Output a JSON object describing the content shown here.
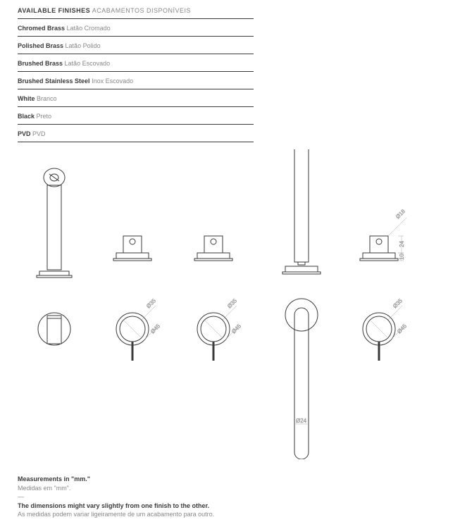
{
  "header": {
    "title_en": "AVAILABLE FINISHES",
    "title_pt": "ACABAMENTOS DISPONÍVEIS"
  },
  "finishes": [
    {
      "en": "Chromed Brass",
      "pt": "Latão Cromado"
    },
    {
      "en": "Polished Brass",
      "pt": "Latão Polido"
    },
    {
      "en": "Brushed Brass",
      "pt": "Latão Escovado"
    },
    {
      "en": "Brushed Stainless Steel",
      "pt": "Inox Escovado"
    },
    {
      "en": "White",
      "pt": "Branco"
    },
    {
      "en": "Black",
      "pt": "Preto"
    },
    {
      "en": "PVD",
      "pt": "PVD"
    }
  ],
  "footer": {
    "meas_en": "Measurements in \"mm.\"",
    "meas_pt": "Medidas em \"mm\".",
    "dash": "—",
    "dim_en": "The dimensions might vary slightly from one finish to the other.",
    "dim_pt": "As medidas podem variar ligeiramente de um acabamento para outro."
  },
  "dimensions": {
    "d35": "Ø35",
    "d45": "Ø45",
    "d24": "Ø24",
    "d18": "Ø18",
    "h24": "24",
    "h10": "10"
  },
  "styling": {
    "line_color": "#3a3a3a",
    "dim_color": "#aaaaaa",
    "stroke_width": 1,
    "dim_stroke_width": 0.5,
    "background": "#ffffff"
  }
}
